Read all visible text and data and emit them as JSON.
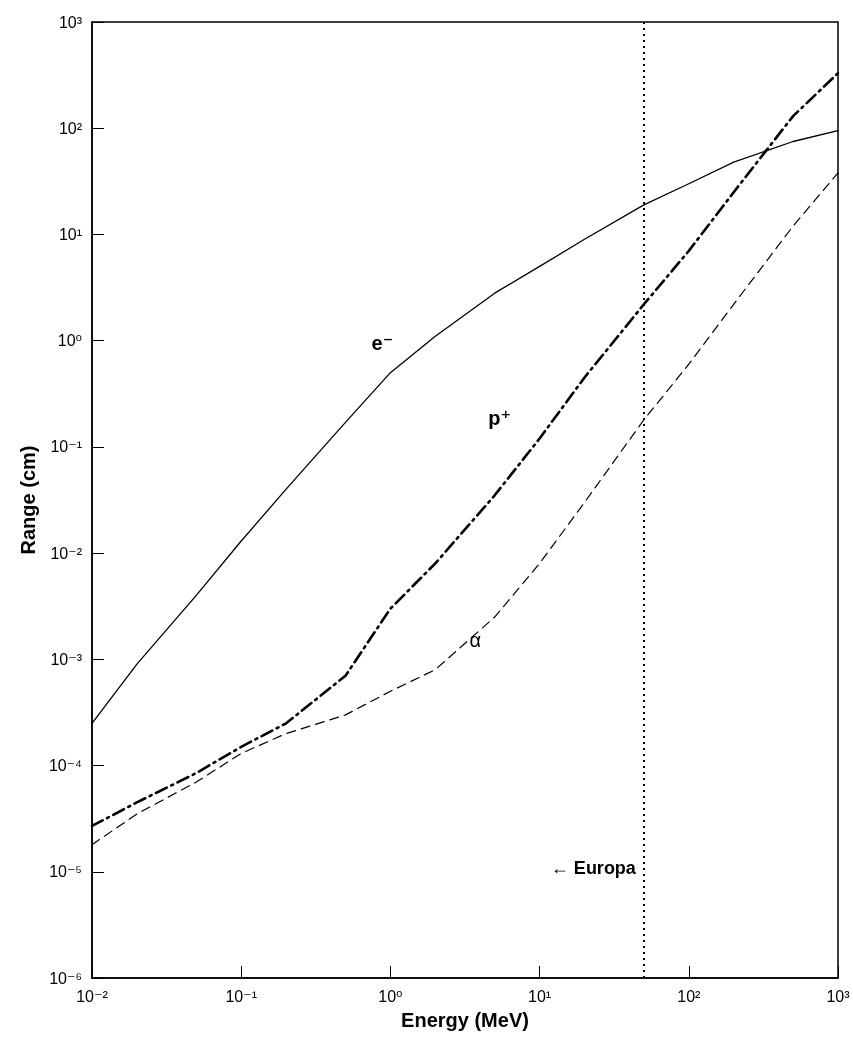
{
  "chart_data": {
    "type": "line",
    "xlabel": "Energy (MeV)",
    "ylabel": "Range (cm)",
    "log": "xy",
    "grid": false,
    "legend": false,
    "marker": "none",
    "xlim": [
      0.01,
      1000
    ],
    "ylim": [
      1e-06,
      1000
    ],
    "xticks": [
      {
        "value": 0.01,
        "label": "10⁻²"
      },
      {
        "value": 0.1,
        "label": "10⁻¹"
      },
      {
        "value": 1,
        "label": "10⁰"
      },
      {
        "value": 10,
        "label": "10¹"
      },
      {
        "value": 100,
        "label": "10²"
      },
      {
        "value": 1000,
        "label": "10³"
      }
    ],
    "yticks": [
      {
        "value": 1e-06,
        "label": "10⁻⁶"
      },
      {
        "value": 1e-05,
        "label": "10⁻⁵"
      },
      {
        "value": 0.0001,
        "label": "10⁻⁴"
      },
      {
        "value": 0.001,
        "label": "10⁻³"
      },
      {
        "value": 0.01,
        "label": "10⁻²"
      },
      {
        "value": 0.1,
        "label": "10⁻¹"
      },
      {
        "value": 1,
        "label": "10⁰"
      },
      {
        "value": 10,
        "label": "10¹"
      },
      {
        "value": 100,
        "label": "10²"
      },
      {
        "value": 1000,
        "label": "10³"
      }
    ],
    "x": [
      0.01,
      0.02,
      0.05,
      0.1,
      0.2,
      0.5,
      1,
      2,
      5,
      10,
      20,
      50,
      100,
      200,
      500,
      1000
    ],
    "series": [
      {
        "name": "e⁻",
        "color": "#000000",
        "line_style": "solid",
        "values": [
          0.00025,
          0.0009,
          0.004,
          0.013,
          0.04,
          0.17,
          0.5,
          1.1,
          2.8,
          5,
          9,
          19,
          30,
          48,
          75,
          95
        ]
      },
      {
        "name": "p⁺",
        "color": "#000000",
        "line_style": "dashdot",
        "values": [
          2.7e-05,
          4.5e-05,
          8.5e-05,
          0.00015,
          0.00025,
          0.0007,
          0.003,
          0.008,
          0.035,
          0.12,
          0.45,
          2.2,
          7,
          25,
          130,
          330
        ]
      },
      {
        "name": "α",
        "color": "#000000",
        "line_style": "dashed",
        "values": [
          1.8e-05,
          3.5e-05,
          7e-05,
          0.00013,
          0.0002,
          0.0003,
          0.0005,
          0.0008,
          0.0025,
          0.008,
          0.03,
          0.18,
          0.6,
          2.2,
          12,
          38
        ]
      }
    ],
    "ref_lines": [
      {
        "axis": "x",
        "value": 50,
        "label": "← Europa",
        "line_style": "dotted",
        "color": "#000000"
      }
    ]
  }
}
